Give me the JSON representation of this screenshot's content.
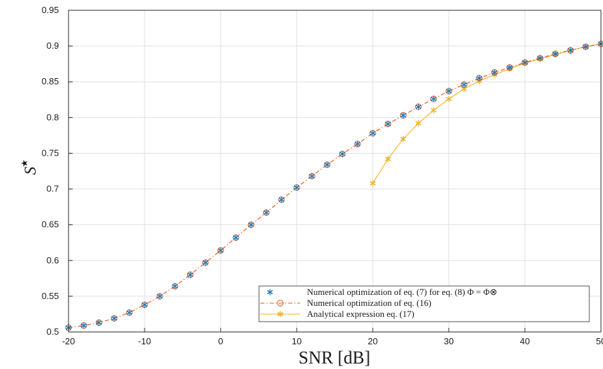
{
  "chart_data": {
    "type": "line",
    "xlabel": "SNR [dB]",
    "ylabel": "S*",
    "xlim": [
      -20,
      50
    ],
    "ylim": [
      0.5,
      0.95
    ],
    "x_ticks": [
      "-20",
      "-10",
      "0",
      "10",
      "20",
      "30",
      "40",
      "50"
    ],
    "y_ticks": [
      "0.5",
      "0.55",
      "0.6",
      "0.65",
      "0.7",
      "0.75",
      "0.8",
      "0.85",
      "0.9",
      "0.95"
    ],
    "grid": true,
    "legend_position": "bottom-right",
    "series": [
      {
        "name": "Numerical optimization of eq. (7) for eq. (8) Φ = Φ⊗",
        "style": "markers-asterisk",
        "color": "#1f77b4",
        "x": [
          -20,
          -18,
          -16,
          -14,
          -12,
          -10,
          -8,
          -6,
          -4,
          -2,
          0,
          2,
          4,
          6,
          8,
          10,
          12,
          14,
          16,
          18,
          20,
          22,
          24,
          26,
          28,
          30,
          32,
          34,
          36,
          38,
          40,
          42,
          44,
          46,
          48,
          50
        ],
        "values": [
          0.506,
          0.509,
          0.513,
          0.519,
          0.527,
          0.538,
          0.55,
          0.564,
          0.58,
          0.597,
          0.614,
          0.632,
          0.65,
          0.667,
          0.685,
          0.702,
          0.718,
          0.734,
          0.749,
          0.763,
          0.778,
          0.791,
          0.803,
          0.815,
          0.826,
          0.837,
          0.846,
          0.855,
          0.863,
          0.87,
          0.877,
          0.883,
          0.889,
          0.894,
          0.899,
          0.903
        ]
      },
      {
        "name": "Numerical optimization of eq. (16)",
        "style": "dashdot-circle",
        "color": "#d95319",
        "x": [
          -20,
          -18,
          -16,
          -14,
          -12,
          -10,
          -8,
          -6,
          -4,
          -2,
          0,
          2,
          4,
          6,
          8,
          10,
          12,
          14,
          16,
          18,
          20,
          22,
          24,
          26,
          28,
          30,
          32,
          34,
          36,
          38,
          40,
          42,
          44,
          46,
          48,
          50
        ],
        "values": [
          0.506,
          0.509,
          0.513,
          0.519,
          0.527,
          0.538,
          0.55,
          0.564,
          0.58,
          0.597,
          0.614,
          0.632,
          0.65,
          0.667,
          0.685,
          0.702,
          0.718,
          0.734,
          0.749,
          0.763,
          0.778,
          0.791,
          0.803,
          0.815,
          0.826,
          0.837,
          0.846,
          0.855,
          0.863,
          0.87,
          0.877,
          0.883,
          0.889,
          0.894,
          0.899,
          0.903
        ]
      },
      {
        "name": "Analytical expression eq. (17)",
        "style": "solid-asterisk",
        "color": "#edb120",
        "x": [
          20,
          22,
          24,
          26,
          28,
          30,
          32,
          34,
          36,
          38,
          40,
          42,
          44,
          46,
          48,
          50
        ],
        "values": [
          0.708,
          0.742,
          0.77,
          0.792,
          0.81,
          0.826,
          0.84,
          0.851,
          0.86,
          0.868,
          0.876,
          0.882,
          0.888,
          0.894,
          0.899,
          0.903
        ]
      }
    ]
  }
}
